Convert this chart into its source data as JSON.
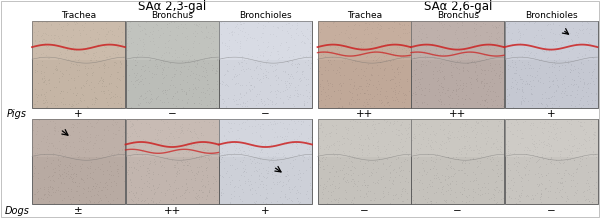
{
  "fig_width": 6.0,
  "fig_height": 2.18,
  "dpi": 100,
  "left_group_title": "SAα 2,3-gal",
  "right_group_title": "SAα 2,6-gal",
  "col_headers": [
    "Trachea",
    "Bronchus",
    "Bronchioles",
    "Trachea",
    "Bronchus",
    "Bronchioles"
  ],
  "row_labels": [
    "Pigs",
    "Dogs"
  ],
  "scores": [
    [
      "+",
      "−",
      "−",
      "++",
      "++",
      "+"
    ],
    [
      "±",
      "++",
      "+",
      "−",
      "−",
      "−"
    ]
  ],
  "title_fontsize": 8.5,
  "col_header_fontsize": 6.5,
  "row_label_fontsize": 7,
  "score_fontsize": 7.5,
  "panel_border_color": "#555555",
  "text_color": "#000000",
  "panel_colors_row1": [
    "#c5b5a5",
    "#bbbdb8",
    "#d2d5de",
    "#c0a898",
    "#b8aaa5",
    "#c5c8d2"
  ],
  "panel_colors_row2": [
    "#b8aaa2",
    "#c2b5ae",
    "#cdd0d8",
    "#c5c2bc",
    "#c5c2bc",
    "#c8c5c0"
  ]
}
